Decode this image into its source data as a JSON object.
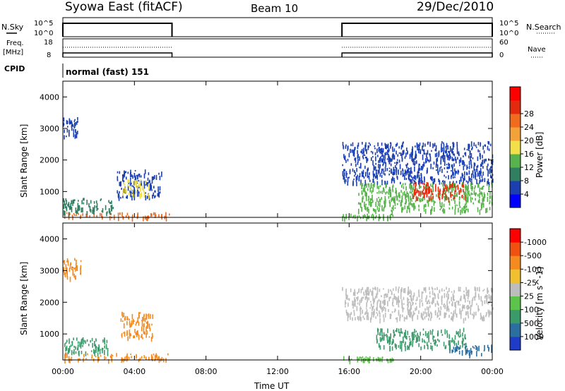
{
  "header": {
    "station": "Syowa East (fitACF)",
    "beam": "Beam 10",
    "date": "29/Dec/2010"
  },
  "top_panels": {
    "nsky_label": "N.Sky",
    "nsky_ticks": [
      "10^5",
      "10^0"
    ],
    "nsearch_label": "N.Search",
    "nsearch_ticks": [
      "10^5",
      "10^0"
    ],
    "freq_label_1": "Freq.",
    "freq_label_2": "[MHz]",
    "freq_ticks": [
      "18",
      "8"
    ],
    "nave_label": "Nave",
    "nave_ticks": [
      "60",
      "0"
    ],
    "cpid_label": "CPID",
    "cpid_value": "normal (fast) 151"
  },
  "x_axis": {
    "label": "Time UT",
    "ticks": [
      "00:00",
      "04:00",
      "08:00",
      "12:00",
      "16:00",
      "20:00",
      "00:00"
    ]
  },
  "chart_data": [
    {
      "type": "heatmap",
      "name": "power",
      "ylabel": "Slant Range [km]",
      "y_ticks": [
        1000,
        2000,
        3000,
        4000
      ],
      "ylim": [
        180,
        4500
      ],
      "xlim_hours": [
        0,
        24
      ],
      "colorbar_label": "Power [dB]",
      "colorbar_ticks": [
        "4",
        "8",
        "12",
        "16",
        "20",
        "24",
        "28"
      ],
      "colorbar_colors": [
        "#0000ff",
        "#1b3fb0",
        "#2f7f60",
        "#57b34b",
        "#f1e04a",
        "#f3a23a",
        "#f06b1e",
        "#e32a10",
        "#ff0000"
      ],
      "data_periods_hours": [
        [
          0,
          6.1
        ],
        [
          15.6,
          24
        ]
      ],
      "echo_regions": [
        {
          "t": [
            0.0,
            0.8
          ],
          "r": [
            2700,
            3400
          ],
          "color": "#1b3fb0"
        },
        {
          "t": [
            0.0,
            6.0
          ],
          "r": [
            200,
            350
          ],
          "color": "#f06b1e"
        },
        {
          "t": [
            0.0,
            2.8
          ],
          "r": [
            350,
            800
          ],
          "color": "#2f7f60"
        },
        {
          "t": [
            3.0,
            5.5
          ],
          "r": [
            800,
            1700
          ],
          "color": "#1b3fb0"
        },
        {
          "t": [
            3.3,
            4.8
          ],
          "r": [
            900,
            1400
          ],
          "color": "#f1e04a"
        },
        {
          "t": [
            15.6,
            24.0
          ],
          "r": [
            1300,
            2600
          ],
          "color": "#1b3fb0"
        },
        {
          "t": [
            16.5,
            24.0
          ],
          "r": [
            400,
            1300
          ],
          "color": "#57b34b"
        },
        {
          "t": [
            19.5,
            22.5
          ],
          "r": [
            800,
            1300
          ],
          "color": "#e32a10"
        },
        {
          "t": [
            15.6,
            18.5
          ],
          "r": [
            200,
            300
          ],
          "color": "#57b34b"
        }
      ]
    },
    {
      "type": "heatmap",
      "name": "velocity",
      "ylabel": "Slant Range [km]",
      "y_ticks": [
        1000,
        2000,
        3000,
        4000
      ],
      "ylim": [
        180,
        4500
      ],
      "xlim_hours": [
        0,
        24
      ],
      "colorbar_label": "Velocity [m s^-1]",
      "colorbar_ticks": [
        "1000",
        "500",
        "100",
        "25",
        "-25",
        "-100",
        "-500",
        "-1000"
      ],
      "colorbar_colors": [
        "#1f3cc8",
        "#2b6fa0",
        "#3a9a6a",
        "#5cc44a",
        "#bdbdbd",
        "#f0c030",
        "#f58a1e",
        "#f05010",
        "#ff0000"
      ],
      "data_periods_hours": [
        [
          0,
          6.1
        ],
        [
          15.6,
          24
        ]
      ],
      "echo_regions": [
        {
          "t": [
            0.0,
            1.0
          ],
          "r": [
            2800,
            3400
          ],
          "color": "#f58a1e"
        },
        {
          "t": [
            0.0,
            2.5
          ],
          "r": [
            400,
            900
          ],
          "color": "#3a9a6a"
        },
        {
          "t": [
            0.0,
            6.0
          ],
          "r": [
            200,
            400
          ],
          "color": "#f58a1e"
        },
        {
          "t": [
            3.2,
            5.0
          ],
          "r": [
            900,
            1700
          ],
          "color": "#f58a1e"
        },
        {
          "t": [
            15.6,
            24.0
          ],
          "r": [
            1500,
            2500
          ],
          "color": "#bdbdbd"
        },
        {
          "t": [
            17.5,
            22.5
          ],
          "r": [
            600,
            1200
          ],
          "color": "#3a9a6a"
        },
        {
          "t": [
            21.5,
            24.0
          ],
          "r": [
            400,
            700
          ],
          "color": "#2b6fa0"
        },
        {
          "t": [
            15.6,
            18.5
          ],
          "r": [
            200,
            300
          ],
          "color": "#5cc44a"
        }
      ]
    }
  ]
}
